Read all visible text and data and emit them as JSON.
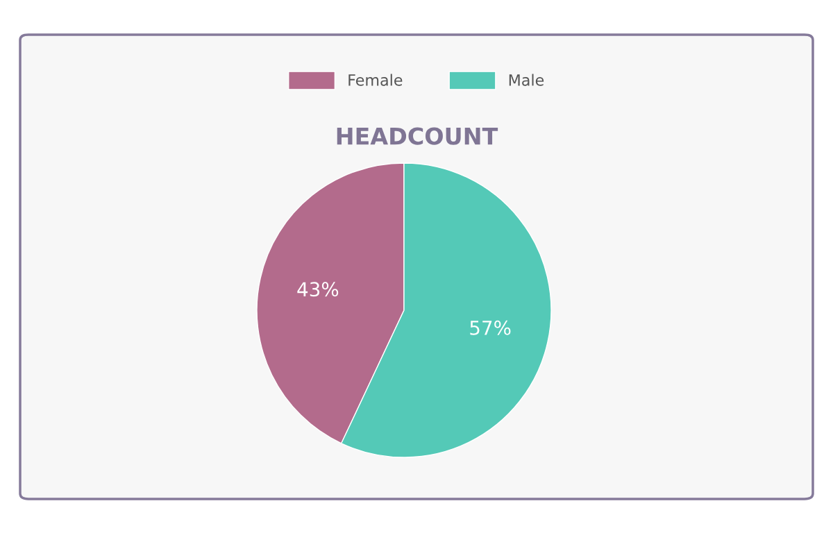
{
  "chart_data": {
    "type": "pie",
    "title": "HEADCOUNT",
    "categories": [
      "Female",
      "Male"
    ],
    "values": [
      43,
      57
    ],
    "colors": [
      "#b36b8c",
      "#54c9b7"
    ],
    "value_labels": [
      "43%",
      "57%"
    ],
    "legend": "top"
  }
}
